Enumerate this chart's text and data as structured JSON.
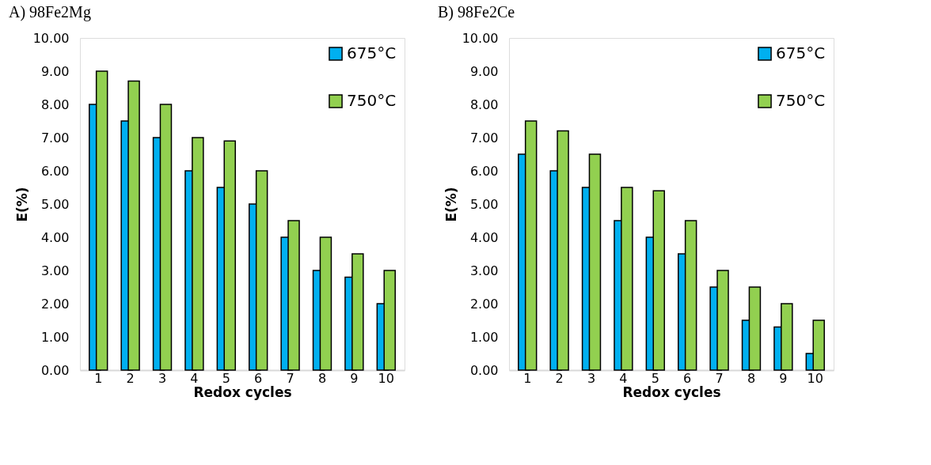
{
  "chart_data": [
    {
      "type": "bar",
      "title": "A) 98Fe2Mg",
      "xlabel": "Redox cycles",
      "ylabel": "E(%)",
      "categories": [
        "1",
        "2",
        "3",
        "4",
        "5",
        "6",
        "7",
        "8",
        "9",
        "10"
      ],
      "series": [
        {
          "name": "675°C",
          "color": "#00b0f0",
          "values": [
            8.0,
            7.5,
            7.0,
            6.0,
            5.5,
            5.0,
            4.0,
            3.0,
            2.8,
            2.0
          ]
        },
        {
          "name": "750°C",
          "color": "#92d050",
          "values": [
            9.0,
            8.7,
            8.0,
            7.0,
            6.9,
            6.0,
            4.5,
            4.0,
            3.5,
            3.0
          ]
        }
      ],
      "ylim": [
        0,
        10
      ],
      "yticks": [
        {
          "value": 0,
          "label": "0.00"
        },
        {
          "value": 1,
          "label": "1.00"
        },
        {
          "value": 2,
          "label": "2.00"
        },
        {
          "value": 3,
          "label": "3.00"
        },
        {
          "value": 4,
          "label": "4.00"
        },
        {
          "value": 5,
          "label": "5.00"
        },
        {
          "value": 6,
          "label": "6.00"
        },
        {
          "value": 7,
          "label": "7.00"
        },
        {
          "value": 8,
          "label": "8.00"
        },
        {
          "value": 9,
          "label": "9.00"
        },
        {
          "value": 10,
          "label": "10.00"
        }
      ],
      "grid": false,
      "legend": "top right"
    },
    {
      "type": "bar",
      "title": "B) 98Fe2Ce",
      "xlabel": "Redox cycles",
      "ylabel": "E(%)",
      "categories": [
        "1",
        "2",
        "3",
        "4",
        "5",
        "6",
        "7",
        "8",
        "9",
        "10"
      ],
      "series": [
        {
          "name": "675°C",
          "color": "#00b0f0",
          "values": [
            6.5,
            6.0,
            5.5,
            4.5,
            4.0,
            3.5,
            2.5,
            1.5,
            1.3,
            0.5
          ]
        },
        {
          "name": "750°C",
          "color": "#92d050",
          "values": [
            7.5,
            7.2,
            6.5,
            5.5,
            5.4,
            4.5,
            3.0,
            2.5,
            2.0,
            1.5
          ]
        }
      ],
      "ylim": [
        0,
        10
      ],
      "yticks": [
        {
          "value": 0,
          "label": "0.00"
        },
        {
          "value": 1,
          "label": "1.00"
        },
        {
          "value": 2,
          "label": "2.00"
        },
        {
          "value": 3,
          "label": "3.00"
        },
        {
          "value": 4,
          "label": "4.00"
        },
        {
          "value": 5,
          "label": "5.00"
        },
        {
          "value": 6,
          "label": "6.00"
        },
        {
          "value": 7,
          "label": "7.00"
        },
        {
          "value": 8,
          "label": "8.00"
        },
        {
          "value": 9,
          "label": "9.00"
        },
        {
          "value": 10,
          "label": "10.00"
        }
      ],
      "grid": false,
      "legend": "top right"
    }
  ]
}
